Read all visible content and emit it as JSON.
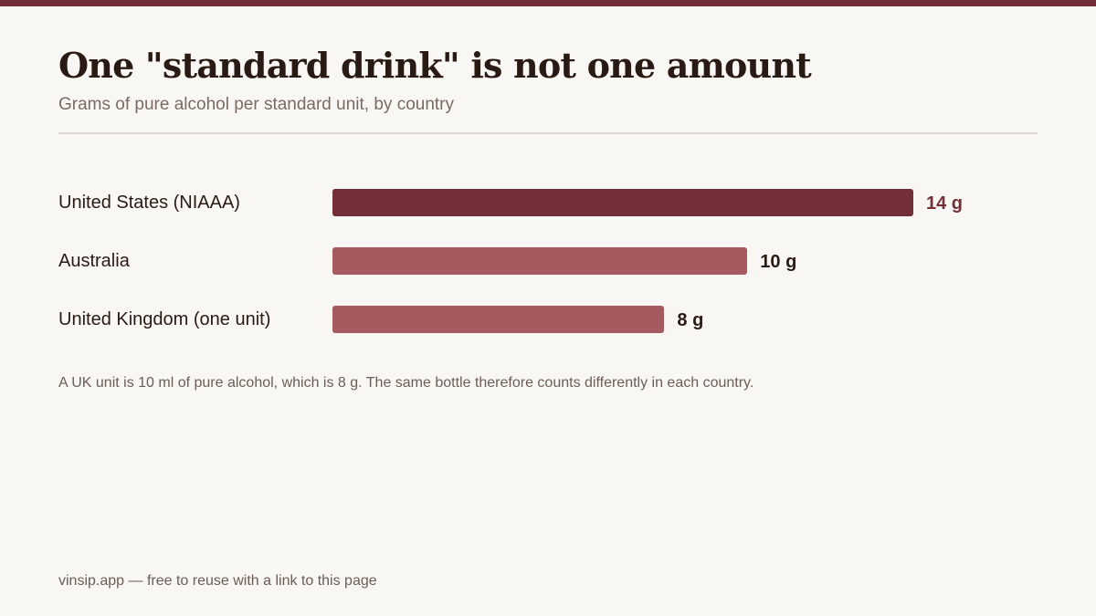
{
  "title": "One \"standard drink\" is not one amount",
  "subtitle": "Grams of pure alcohol per standard unit, by country",
  "note": "A UK unit is 10 ml of pure alcohol, which is 8 g. The same bottle therefore counts differently in each country.",
  "footer": "vinsip.app — free to reuse with a link to this page",
  "colors": {
    "accent": "#722f38",
    "bar_secondary": "#a65a60",
    "text_dark": "#2a1a14",
    "text_muted": "#6b5d56",
    "background": "#f9f7f4"
  },
  "chart_data": {
    "type": "bar",
    "orientation": "horizontal",
    "title": "One \"standard drink\" is not one amount",
    "subtitle": "Grams of pure alcohol per standard unit, by country",
    "categories": [
      "United States (NIAAA)",
      "Australia",
      "United Kingdom (one unit)"
    ],
    "values": [
      14,
      10,
      8
    ],
    "unit": "g",
    "value_labels": [
      "14 g",
      "10 g",
      "8 g"
    ],
    "highlight_index": 0,
    "grid": false,
    "legend": "none"
  }
}
